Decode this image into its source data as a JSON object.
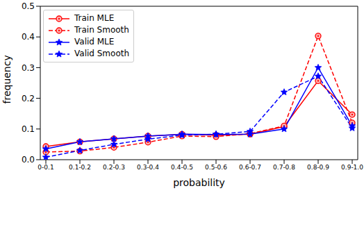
{
  "chart_data": {
    "type": "line",
    "x_label": "probability",
    "y_label": "frequency",
    "categories": [
      "0-0.1",
      "0.1-0.2",
      "0.2-0.3",
      "0.3-0.4",
      "0.4-0.5",
      "0.5-0.6",
      "0.6-0.7",
      "0.7-0.8",
      "0.8-0.9",
      "0.9-1.0"
    ],
    "series": [
      {
        "name": "Train MLE",
        "color": "#ff0000",
        "marker": "circle",
        "line_style": "solid",
        "values": [
          0.043,
          0.058,
          0.068,
          0.077,
          0.083,
          0.08,
          0.083,
          0.108,
          0.257,
          0.147
        ]
      },
      {
        "name": "Train Smooth",
        "color": "#ff0000",
        "marker": "circle",
        "line_style": "dashed",
        "values": [
          0.025,
          0.028,
          0.04,
          0.057,
          0.077,
          0.075,
          0.085,
          0.11,
          0.403,
          0.12
        ]
      },
      {
        "name": "Valid MLE",
        "color": "#0000ff",
        "marker": "star",
        "line_style": "solid",
        "values": [
          0.035,
          0.058,
          0.068,
          0.077,
          0.083,
          0.082,
          0.083,
          0.1,
          0.3,
          0.11
        ]
      },
      {
        "name": "Valid Smooth",
        "color": "#0000ff",
        "marker": "star",
        "line_style": "dashed",
        "values": [
          0.008,
          0.03,
          0.05,
          0.067,
          0.08,
          0.083,
          0.092,
          0.22,
          0.272,
          0.103
        ]
      }
    ],
    "ylim": [
      0,
      0.5
    ],
    "yticks": [
      {
        "value": 0,
        "label": "0.0"
      },
      0.1,
      0.2,
      0.3,
      0.4,
      0.5
    ],
    "grid": false,
    "legend": "upper left"
  }
}
